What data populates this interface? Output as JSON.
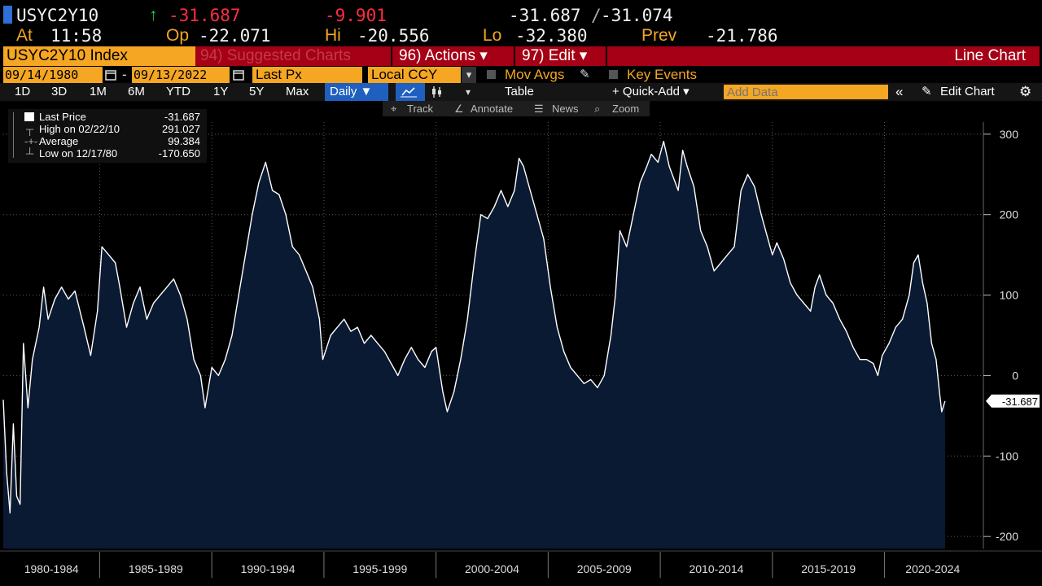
{
  "quote": {
    "ticker": "USYC2Y10",
    "arrow": "↑",
    "last": "-31.687",
    "change": "-9.901",
    "bid_ask": "-31.687",
    "bid_ask_sep": "/",
    "ask": "-31.074",
    "at_label": "At",
    "time": "11:58",
    "open_label": "Op",
    "open": "-22.071",
    "high_label": "Hi",
    "high": "-20.556",
    "low_label": "Lo",
    "low": "-32.380",
    "prev_label": "Prev",
    "prev": "-21.786"
  },
  "toolbar": {
    "security": "USYC2Y10 Index",
    "suggested": "94) Suggested Charts",
    "actions": "96) Actions ▾",
    "edit": "97) Edit ▾",
    "chart_type": "Line Chart"
  },
  "settings": {
    "start_date": "09/14/1980",
    "dash": "-",
    "end_date": "09/13/2022",
    "field": "Last Px",
    "currency": "Local CCY",
    "mov_avgs": "Mov Avgs",
    "key_events": "Key Events"
  },
  "periods": [
    "1D",
    "3D",
    "1M",
    "6M",
    "YTD",
    "1Y",
    "5Y",
    "Max"
  ],
  "frequency": "Daily ▼",
  "dropdown_arrow": "▾",
  "table_label": "Table",
  "quick_add": "+ Quick-Add ▾",
  "add_data_placeholder": "Add Data",
  "collapse_label": "«",
  "edit_chart": "Edit Chart",
  "tools": [
    "Track",
    "Annotate",
    "News",
    "Zoom"
  ],
  "legend": [
    {
      "label": "Last Price",
      "value": "-31.687"
    },
    {
      "label": "High on 02/22/10",
      "value": "291.027"
    },
    {
      "label": "Average",
      "value": "99.384"
    },
    {
      "label": "Low on 12/17/80",
      "value": "-170.650"
    }
  ],
  "colors": {
    "orange": "#f5a623",
    "red_bar": "#a50015",
    "line": "#ffffff",
    "fill": "#0a1a33",
    "grid": "#5a5a5a",
    "selected": "#1f5fbf"
  },
  "chart_data": {
    "type": "area",
    "x_start": 1980.7,
    "x_end": 2022.7,
    "xlim": [
      1980.7,
      2024.3
    ],
    "ylim": [
      -215,
      315
    ],
    "y_ticks": [
      -200,
      -100,
      0,
      100,
      200,
      300
    ],
    "x_labels": [
      "1980-1984",
      "1985-1989",
      "1990-1994",
      "1995-1999",
      "2000-2004",
      "2005-2009",
      "2010-2014",
      "2015-2019",
      "2020-2024"
    ],
    "last_value_label": "-31.687",
    "series": [
      {
        "values": [
          [
            1980.7,
            -30
          ],
          [
            1980.85,
            -120
          ],
          [
            1981.0,
            -170.65
          ],
          [
            1981.15,
            -60
          ],
          [
            1981.3,
            -150
          ],
          [
            1981.45,
            -160
          ],
          [
            1981.6,
            40
          ],
          [
            1981.8,
            -40
          ],
          [
            1982.0,
            20
          ],
          [
            1982.3,
            60
          ],
          [
            1982.5,
            110
          ],
          [
            1982.7,
            70
          ],
          [
            1983.0,
            95
          ],
          [
            1983.3,
            110
          ],
          [
            1983.6,
            95
          ],
          [
            1983.9,
            105
          ],
          [
            1984.3,
            60
          ],
          [
            1984.6,
            25
          ],
          [
            1984.9,
            80
          ],
          [
            1985.1,
            160
          ],
          [
            1985.4,
            150
          ],
          [
            1985.7,
            140
          ],
          [
            1985.9,
            110
          ],
          [
            1986.2,
            60
          ],
          [
            1986.5,
            90
          ],
          [
            1986.8,
            110
          ],
          [
            1987.1,
            70
          ],
          [
            1987.4,
            90
          ],
          [
            1987.7,
            100
          ],
          [
            1988.0,
            110
          ],
          [
            1988.3,
            120
          ],
          [
            1988.6,
            100
          ],
          [
            1988.9,
            70
          ],
          [
            1989.2,
            20
          ],
          [
            1989.5,
            0
          ],
          [
            1989.7,
            -40
          ],
          [
            1990.0,
            10
          ],
          [
            1990.3,
            0
          ],
          [
            1990.6,
            20
          ],
          [
            1990.9,
            50
          ],
          [
            1991.2,
            100
          ],
          [
            1991.5,
            150
          ],
          [
            1991.8,
            200
          ],
          [
            1992.1,
            240
          ],
          [
            1992.4,
            265
          ],
          [
            1992.7,
            230
          ],
          [
            1993.0,
            225
          ],
          [
            1993.3,
            200
          ],
          [
            1993.6,
            160
          ],
          [
            1993.9,
            150
          ],
          [
            1994.2,
            130
          ],
          [
            1994.5,
            110
          ],
          [
            1994.8,
            70
          ],
          [
            1994.95,
            20
          ],
          [
            1995.3,
            50
          ],
          [
            1995.6,
            60
          ],
          [
            1995.9,
            70
          ],
          [
            1996.2,
            55
          ],
          [
            1996.5,
            60
          ],
          [
            1996.8,
            40
          ],
          [
            1997.1,
            50
          ],
          [
            1997.4,
            40
          ],
          [
            1997.7,
            30
          ],
          [
            1998.0,
            15
          ],
          [
            1998.3,
            0
          ],
          [
            1998.6,
            20
          ],
          [
            1998.9,
            35
          ],
          [
            1999.2,
            20
          ],
          [
            1999.5,
            10
          ],
          [
            1999.8,
            30
          ],
          [
            2000.0,
            35
          ],
          [
            2000.3,
            -20
          ],
          [
            2000.5,
            -45
          ],
          [
            2000.8,
            -20
          ],
          [
            2001.1,
            20
          ],
          [
            2001.4,
            70
          ],
          [
            2001.7,
            140
          ],
          [
            2002.0,
            200
          ],
          [
            2002.3,
            195
          ],
          [
            2002.6,
            210
          ],
          [
            2002.9,
            230
          ],
          [
            2003.2,
            210
          ],
          [
            2003.5,
            230
          ],
          [
            2003.7,
            270
          ],
          [
            2003.9,
            260
          ],
          [
            2004.2,
            230
          ],
          [
            2004.5,
            200
          ],
          [
            2004.8,
            170
          ],
          [
            2005.1,
            110
          ],
          [
            2005.4,
            60
          ],
          [
            2005.7,
            30
          ],
          [
            2006.0,
            10
          ],
          [
            2006.3,
            0
          ],
          [
            2006.6,
            -10
          ],
          [
            2006.9,
            -5
          ],
          [
            2007.2,
            -15
          ],
          [
            2007.5,
            0
          ],
          [
            2007.8,
            50
          ],
          [
            2008.0,
            100
          ],
          [
            2008.2,
            180
          ],
          [
            2008.5,
            160
          ],
          [
            2008.8,
            200
          ],
          [
            2009.1,
            240
          ],
          [
            2009.4,
            260
          ],
          [
            2009.6,
            275
          ],
          [
            2009.9,
            265
          ],
          [
            2010.15,
            291.027
          ],
          [
            2010.4,
            260
          ],
          [
            2010.6,
            245
          ],
          [
            2010.8,
            230
          ],
          [
            2011.0,
            280
          ],
          [
            2011.2,
            260
          ],
          [
            2011.5,
            235
          ],
          [
            2011.8,
            180
          ],
          [
            2012.1,
            160
          ],
          [
            2012.4,
            130
          ],
          [
            2012.7,
            140
          ],
          [
            2013.0,
            150
          ],
          [
            2013.3,
            160
          ],
          [
            2013.6,
            230
          ],
          [
            2013.9,
            250
          ],
          [
            2014.2,
            235
          ],
          [
            2014.5,
            200
          ],
          [
            2014.8,
            170
          ],
          [
            2015.0,
            150
          ],
          [
            2015.2,
            165
          ],
          [
            2015.5,
            145
          ],
          [
            2015.8,
            115
          ],
          [
            2016.1,
            100
          ],
          [
            2016.4,
            90
          ],
          [
            2016.7,
            80
          ],
          [
            2016.9,
            110
          ],
          [
            2017.1,
            125
          ],
          [
            2017.4,
            100
          ],
          [
            2017.7,
            90
          ],
          [
            2018.0,
            70
          ],
          [
            2018.3,
            55
          ],
          [
            2018.6,
            35
          ],
          [
            2018.9,
            20
          ],
          [
            2019.2,
            20
          ],
          [
            2019.5,
            15
          ],
          [
            2019.7,
            0
          ],
          [
            2019.9,
            25
          ],
          [
            2020.2,
            40
          ],
          [
            2020.5,
            60
          ],
          [
            2020.8,
            70
          ],
          [
            2021.1,
            100
          ],
          [
            2021.3,
            140
          ],
          [
            2021.5,
            150
          ],
          [
            2021.7,
            115
          ],
          [
            2021.9,
            90
          ],
          [
            2022.1,
            40
          ],
          [
            2022.3,
            20
          ],
          [
            2022.45,
            -20
          ],
          [
            2022.55,
            -45
          ],
          [
            2022.7,
            -31.687
          ]
        ]
      }
    ]
  }
}
